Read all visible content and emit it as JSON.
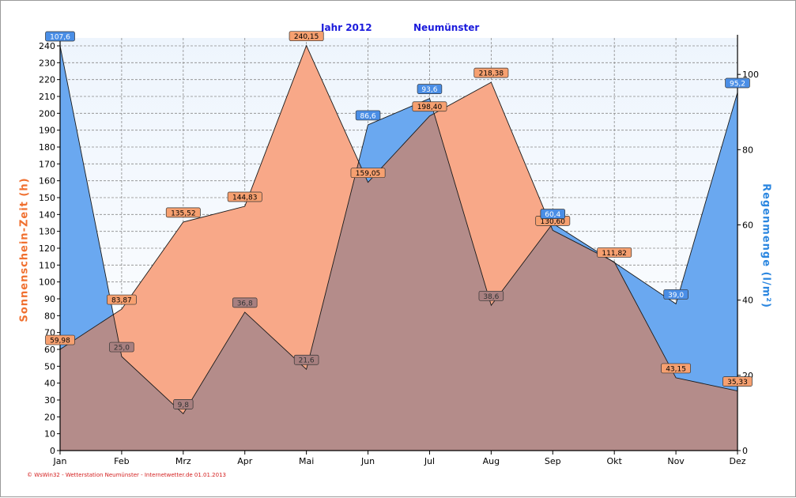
{
  "title_year": "Jahr  2012",
  "title_place": "Neumünster",
  "ylabel_left": "Sonnenschein-Zeit  (h)",
  "ylabel_right": "Regenmenge  (l/m²)",
  "footer": "© WsWin32 - Wetterstation Neumünster - Internetwetter.de  01.01.2013",
  "colors": {
    "sun_fill": "#f8a888",
    "rain_fill": "#6aa8f0",
    "overlap_fill": "#b48c8a",
    "sun_label_bg": "#f6a070",
    "rain_label_bg": "#4a8ee6",
    "title": "#1a1adc"
  },
  "chart_data": {
    "type": "area",
    "categories": [
      "Jan",
      "Feb",
      "Mrz",
      "Apr",
      "Mai",
      "Jun",
      "Jul",
      "Aug",
      "Sep",
      "Okt",
      "Nov",
      "Dez"
    ],
    "series": [
      {
        "axis": "left",
        "values": [
          59.98,
          83.87,
          135.52,
          144.83,
          240.15,
          159.05,
          198.4,
          218.38,
          130.6,
          111.82,
          43.15,
          35.33
        ],
        "labels": [
          "59,98",
          "83,87",
          "135,52",
          "144,83",
          "240,15",
          "159,05",
          "198,40",
          "218,38",
          "130,60",
          "111,82",
          "43,15",
          "35,33"
        ]
      },
      {
        "axis": "right",
        "values": [
          107.6,
          25.0,
          9.8,
          36.8,
          21.6,
          86.6,
          93.6,
          38.6,
          60.4,
          50.0,
          39.0,
          95.2
        ],
        "labels": [
          "107,6",
          "25,0",
          "9,8",
          "36,8",
          "21,6",
          "86,6",
          "93,6",
          "38,6",
          "60,4",
          "",
          "39,0",
          "95,2"
        ]
      }
    ],
    "ylim_left": [
      0,
      240
    ],
    "ylim_right": [
      0,
      107.6
    ],
    "yticks_left": [
      "0",
      "10",
      "20",
      "30",
      "40",
      "50",
      "60",
      "70",
      "80",
      "90",
      "100",
      "110",
      "120",
      "130",
      "140",
      "150",
      "160",
      "170",
      "180",
      "190",
      "200",
      "210",
      "220",
      "230",
      "240"
    ],
    "yticks_right": [
      "0",
      "20",
      "40",
      "60",
      "80",
      "100"
    ],
    "grid": true
  }
}
